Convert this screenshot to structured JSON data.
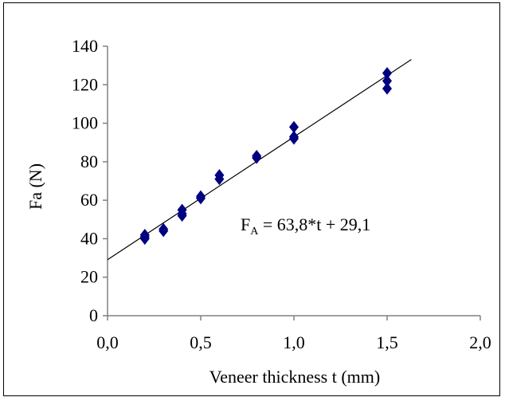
{
  "chart_data": {
    "type": "scatter",
    "title": "",
    "xlabel": "Veneer thickness t (mm)",
    "ylabel": "Fa (N)",
    "xlim": [
      0.0,
      2.0
    ],
    "ylim": [
      0,
      140
    ],
    "x_ticks": [
      "0,0",
      "0,5",
      "1,0",
      "1,5",
      "2,0"
    ],
    "x_tick_values": [
      0.0,
      0.5,
      1.0,
      1.5,
      2.0
    ],
    "y_ticks": [
      "0",
      "20",
      "40",
      "60",
      "80",
      "100",
      "120",
      "140"
    ],
    "y_tick_values": [
      0,
      20,
      40,
      60,
      80,
      100,
      120,
      140
    ],
    "grid": false,
    "legend": "none",
    "marker_color": "#000080",
    "series": [
      {
        "marker": "diamond",
        "points": [
          {
            "x": 0.2,
            "y": 40
          },
          {
            "x": 0.2,
            "y": 42
          },
          {
            "x": 0.2,
            "y": 41
          },
          {
            "x": 0.3,
            "y": 44
          },
          {
            "x": 0.3,
            "y": 45
          },
          {
            "x": 0.4,
            "y": 52
          },
          {
            "x": 0.4,
            "y": 55
          },
          {
            "x": 0.4,
            "y": 53
          },
          {
            "x": 0.5,
            "y": 61
          },
          {
            "x": 0.5,
            "y": 62
          },
          {
            "x": 0.6,
            "y": 71
          },
          {
            "x": 0.6,
            "y": 73
          },
          {
            "x": 0.8,
            "y": 82
          },
          {
            "x": 0.8,
            "y": 83
          },
          {
            "x": 1.0,
            "y": 93
          },
          {
            "x": 1.0,
            "y": 98
          },
          {
            "x": 1.0,
            "y": 92
          },
          {
            "x": 1.5,
            "y": 118
          },
          {
            "x": 1.5,
            "y": 122
          },
          {
            "x": 1.5,
            "y": 126
          }
        ]
      }
    ],
    "trendline": {
      "slope": 63.8,
      "intercept": 29.1,
      "x_range": [
        0.0,
        1.63
      ]
    },
    "annotation": {
      "prefix": "F",
      "subscript": "A",
      "text": " = 63,8*t + 29,1"
    }
  }
}
